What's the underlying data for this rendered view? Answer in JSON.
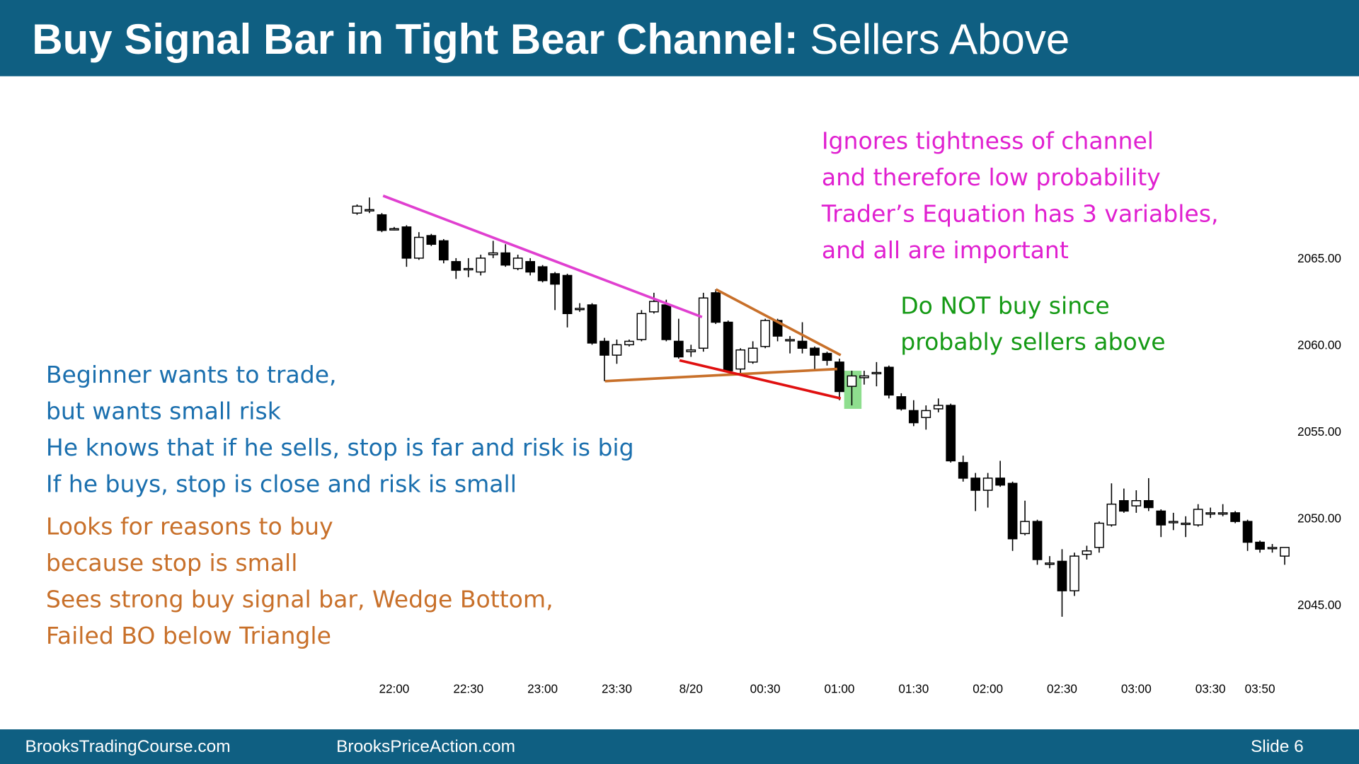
{
  "slide": {
    "title_bold": "Buy Signal Bar in Tight Bear Channel:",
    "title_rest": "Sellers Above",
    "footer_left": "BrooksTradingCourse.com",
    "footer_mid": "BrooksPriceAction.com",
    "footer_right": "Slide  6"
  },
  "annotations": [
    {
      "color": "#e020d0",
      "lines": [
        "Ignores tightness of channel",
        "and therefore low probability",
        "Trader’s Equation has 3 variables,",
        "and all are important"
      ]
    },
    {
      "color": "#159a15",
      "lines": [
        "Do NOT buy since",
        "probably sellers above"
      ]
    },
    {
      "color": "#1a6fae",
      "lines": [
        "Beginner wants to trade,",
        "but wants small risk",
        "He knows that if he sells, stop is far and risk is big",
        "If he buys, stop is close and risk is small"
      ]
    },
    {
      "color": "#c8702a",
      "lines": [
        "Looks for reasons to buy",
        "because stop is small",
        "Sees strong buy signal bar, Wedge Bottom,",
        "Failed BO below Triangle"
      ]
    }
  ],
  "chart_data": {
    "type": "candlestick",
    "up_color": "#ffffff",
    "down_color": "#000000",
    "categories": [
      null,
      null,
      null,
      "22:00",
      null,
      null,
      null,
      null,
      null,
      "22:30",
      null,
      null,
      null,
      null,
      null,
      "23:00",
      null,
      null,
      null,
      null,
      null,
      "23:30",
      null,
      null,
      null,
      null,
      null,
      "8/20",
      null,
      null,
      null,
      null,
      null,
      "00:30",
      null,
      null,
      null,
      null,
      null,
      "01:00",
      null,
      null,
      null,
      null,
      null,
      "01:30",
      null,
      null,
      null,
      null,
      null,
      "02:00",
      null,
      null,
      null,
      null,
      null,
      "02:30",
      null,
      null,
      null,
      null,
      null,
      "03:00",
      null,
      null,
      null,
      null,
      null,
      "03:30",
      null,
      null,
      null,
      "03:50",
      null,
      null
    ],
    "open": [
      2067.6,
      2067.8,
      2067.5,
      2066.7,
      2066.8,
      2065.0,
      2066.3,
      2066.0,
      2064.8,
      2064.4,
      2064.2,
      2065.2,
      2065.3,
      2064.4,
      2064.8,
      2064.5,
      2064.1,
      2064.0,
      2062.1,
      2062.3,
      2060.2,
      2059.4,
      2060.0,
      2060.3,
      2061.9,
      2062.3,
      2060.2,
      2059.6,
      2059.8,
      2063.0,
      2061.3,
      2058.6,
      2059.0,
      2059.9,
      2061.4,
      2060.3,
      2060.2,
      2059.8,
      2059.5,
      2059.0,
      2057.6,
      2058.1,
      2058.4,
      2058.7,
      2057.0,
      2056.2,
      2055.8,
      2056.3,
      2056.5,
      2053.2,
      2052.3,
      2051.6,
      2052.3,
      2052.0,
      2049.1,
      2049.8,
      2047.4,
      2047.5,
      2045.8,
      2047.9,
      2048.3,
      2049.6,
      2051.0,
      2050.7,
      2051.0,
      2050.4,
      2049.8,
      2049.7,
      2049.6,
      2050.3,
      2050.3,
      2050.3,
      2049.8,
      2048.6,
      2048.3,
      2047.8
    ],
    "high": [
      2068.1,
      2068.5,
      2067.6,
      2066.8,
      2066.9,
      2066.5,
      2066.4,
      2066.1,
      2065.0,
      2065.0,
      2065.2,
      2066.0,
      2065.8,
      2065.2,
      2065.0,
      2064.6,
      2064.2,
      2064.1,
      2062.4,
      2062.4,
      2060.4,
      2060.3,
      2060.3,
      2062.0,
      2063.0,
      2062.6,
      2061.5,
      2060.0,
      2063.0,
      2063.2,
      2061.4,
      2059.8,
      2060.2,
      2061.5,
      2061.5,
      2060.5,
      2061.3,
      2059.9,
      2059.6,
      2059.2,
      2058.5,
      2058.5,
      2059.0,
      2058.8,
      2057.2,
      2056.8,
      2056.5,
      2056.9,
      2056.6,
      2053.6,
      2052.6,
      2052.6,
      2053.3,
      2052.1,
      2051.0,
      2049.9,
      2047.8,
      2048.2,
      2048.0,
      2048.4,
      2049.8,
      2052.0,
      2051.7,
      2051.6,
      2052.3,
      2050.5,
      2050.3,
      2050.1,
      2050.8,
      2050.6,
      2050.8,
      2050.4,
      2049.9,
      2048.7,
      2048.5,
      2048.3
    ],
    "low": [
      2067.5,
      2067.6,
      2066.5,
      2066.6,
      2064.5,
      2064.9,
      2065.7,
      2064.7,
      2063.8,
      2063.9,
      2064.0,
      2065.0,
      2064.5,
      2064.3,
      2064.0,
      2063.6,
      2062.0,
      2061.0,
      2061.9,
      2060.0,
      2057.9,
      2058.9,
      2059.9,
      2060.2,
      2061.8,
      2060.2,
      2059.2,
      2059.3,
      2059.6,
      2061.2,
      2058.4,
      2058.3,
      2058.9,
      2059.8,
      2060.2,
      2059.5,
      2059.5,
      2058.6,
      2058.8,
      2056.8,
      2056.5,
      2057.7,
      2057.6,
      2056.9,
      2056.2,
      2055.3,
      2055.1,
      2056.1,
      2053.2,
      2052.1,
      2050.4,
      2050.6,
      2051.8,
      2048.1,
      2049.0,
      2047.3,
      2047.1,
      2044.3,
      2045.5,
      2047.6,
      2048.0,
      2049.5,
      2050.3,
      2050.3,
      2050.4,
      2048.9,
      2049.3,
      2048.9,
      2049.5,
      2050.0,
      2050.1,
      2049.7,
      2048.1,
      2048.0,
      2048.0,
      2047.3
    ],
    "close": [
      2068.0,
      2067.8,
      2066.6,
      2066.7,
      2065.0,
      2066.2,
      2065.8,
      2064.9,
      2064.3,
      2064.4,
      2065.0,
      2065.3,
      2064.6,
      2065.0,
      2064.2,
      2063.7,
      2063.5,
      2061.8,
      2062.1,
      2060.1,
      2059.4,
      2060.0,
      2060.2,
      2061.8,
      2062.5,
      2060.3,
      2059.3,
      2059.7,
      2062.7,
      2061.3,
      2058.5,
      2059.7,
      2059.8,
      2061.4,
      2060.5,
      2060.3,
      2059.8,
      2059.4,
      2059.1,
      2057.3,
      2058.2,
      2058.2,
      2058.4,
      2057.1,
      2056.3,
      2055.5,
      2056.2,
      2056.5,
      2053.3,
      2052.3,
      2051.6,
      2052.3,
      2051.9,
      2048.8,
      2049.8,
      2047.6,
      2047.4,
      2045.8,
      2047.8,
      2048.1,
      2049.7,
      2050.8,
      2050.4,
      2051.0,
      2050.6,
      2049.6,
      2049.8,
      2049.7,
      2050.5,
      2050.3,
      2050.3,
      2049.8,
      2048.6,
      2048.2,
      2048.3,
      2048.3
    ],
    "ylim": [
      2044,
      2069
    ],
    "yticks": [
      {
        "value": 2045,
        "label": "2045.00"
      },
      {
        "value": 2050,
        "label": "2050.00"
      },
      {
        "value": 2055,
        "label": "2055.00"
      },
      {
        "value": 2060,
        "label": "2060.00"
      },
      {
        "value": 2065,
        "label": "2065.00"
      }
    ]
  }
}
